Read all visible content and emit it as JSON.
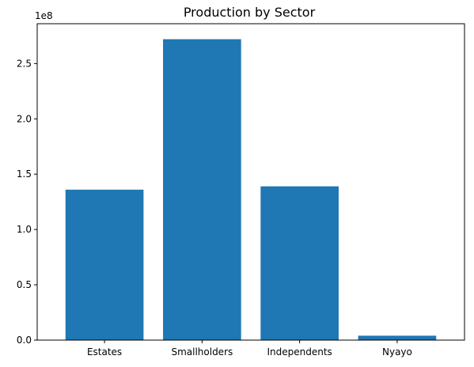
{
  "chart_data": {
    "type": "bar",
    "title": "Production by Sector",
    "xlabel": "",
    "ylabel": "",
    "categories": [
      "Estates",
      "Smallholders",
      "Independents",
      "Nyayo"
    ],
    "values": [
      136000000,
      272000000,
      139000000,
      4000000
    ],
    "ylim": [
      0,
      286000000
    ],
    "y_ticks": [
      0,
      50000000,
      100000000,
      150000000,
      200000000,
      250000000
    ],
    "y_tick_labels": [
      "0.0",
      "0.5",
      "1.0",
      "1.5",
      "2.0",
      "2.5"
    ],
    "y_offset_label": "1e8",
    "bar_color": "#1f77b4",
    "grid": false,
    "legend": "none"
  }
}
